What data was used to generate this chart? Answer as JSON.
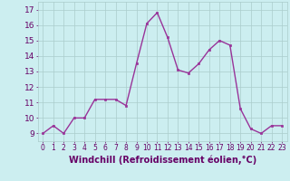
{
  "x": [
    0,
    1,
    2,
    3,
    4,
    5,
    6,
    7,
    8,
    9,
    10,
    11,
    12,
    13,
    14,
    15,
    16,
    17,
    18,
    19,
    20,
    21,
    22,
    23
  ],
  "y": [
    9,
    9.5,
    9,
    10,
    10,
    11.2,
    11.2,
    11.2,
    10.8,
    13.5,
    16.1,
    16.8,
    15.2,
    13.1,
    12.9,
    13.5,
    14.4,
    15.0,
    14.7,
    10.6,
    9.3,
    9.0,
    9.5,
    9.5
  ],
  "line_color": "#993399",
  "marker_color": "#993399",
  "bg_color": "#cceef0",
  "grid_color": "#aacccc",
  "xlabel": "Windchill (Refroidissement éolien,°C)",
  "ylabel_ticks": [
    9,
    10,
    11,
    12,
    13,
    14,
    15,
    16,
    17
  ],
  "xlim": [
    -0.5,
    23.5
  ],
  "ylim": [
    8.5,
    17.5
  ],
  "label_color": "#660066",
  "tick_color": "#660066",
  "xlabel_fontsize": 7,
  "ytick_fontsize": 6.5,
  "xtick_fontsize": 5.5,
  "linewidth": 1.0,
  "markersize": 2.0
}
